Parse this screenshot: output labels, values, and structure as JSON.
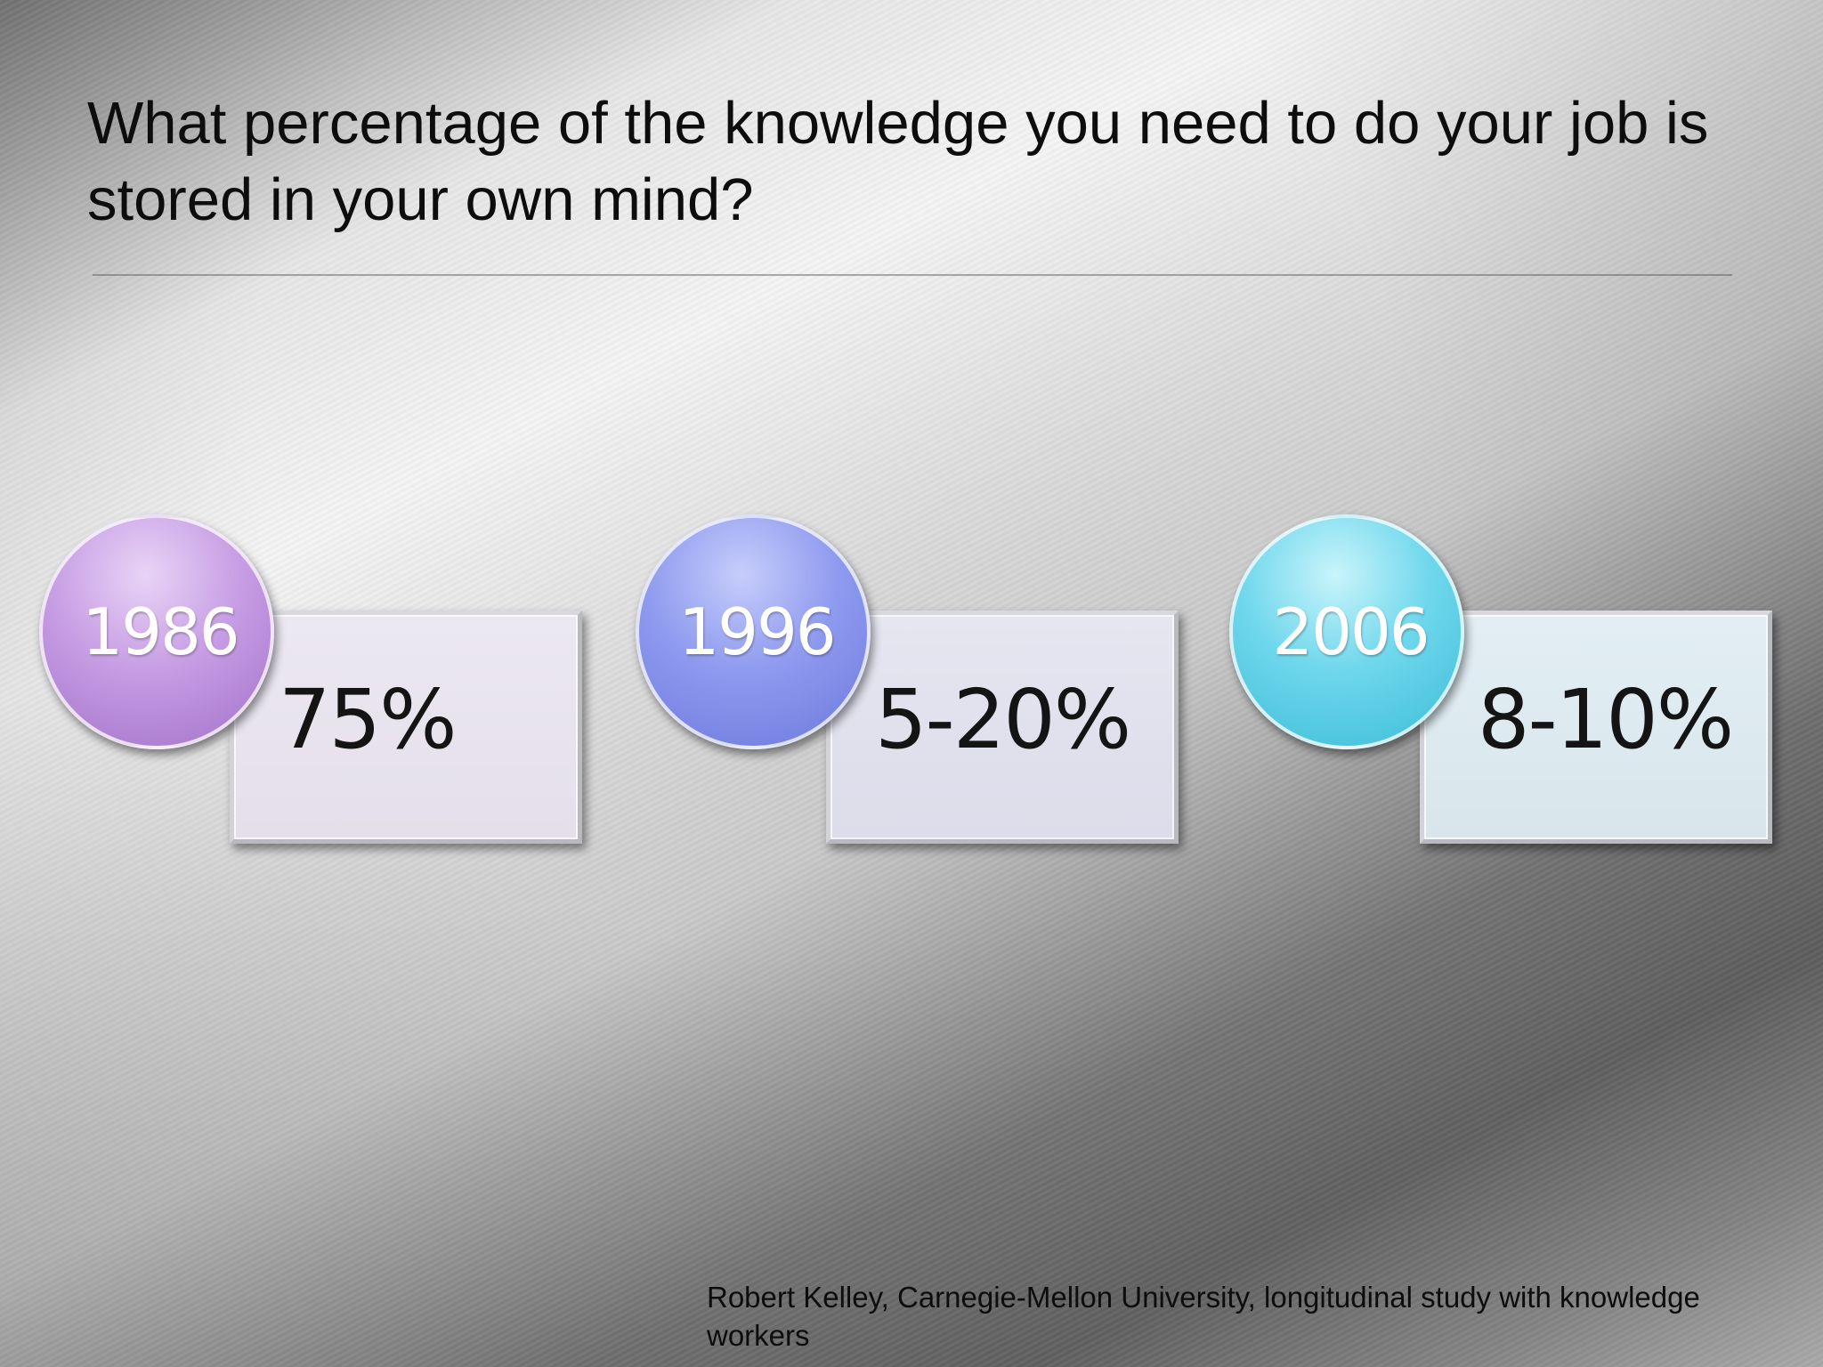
{
  "slide": {
    "title": "What percentage of the knowledge you need to do your job is stored in your own mind?",
    "items": [
      {
        "year": "1986",
        "value": "75%",
        "color": "#b98ad8"
      },
      {
        "year": "1996",
        "value": "5-20%",
        "color": "#7f8be8"
      },
      {
        "year": "2006",
        "value": "8-10%",
        "color": "#52cbe2"
      }
    ],
    "source": "Robert Kelley, Carnegie-Mellon University, longitudinal study with knowledge workers"
  }
}
